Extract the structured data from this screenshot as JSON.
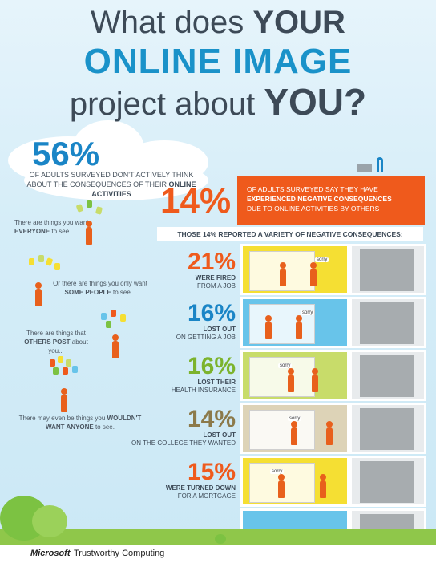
{
  "title": {
    "line1_pre": "What does",
    "line1_bold": "YOUR",
    "line2": "ONLINE IMAGE",
    "line3_pre": "project about",
    "line3_bold": "YOU?"
  },
  "intro": {
    "percent": "56%",
    "text_pre": "OF ADULTS SURVEYED DON'T ACTIVELY THINK ABOUT THE CONSEQUENCES OF THEIR",
    "text_bold": "ONLINE ACTIVITIES"
  },
  "left_items": [
    {
      "pre": "There are things you want",
      "bold": "EVERYONE",
      "post": "to see..."
    },
    {
      "pre": "Or there are things you only want",
      "bold": "SOME PEOPLE",
      "post": "to see..."
    },
    {
      "pre": "There are things that",
      "bold": "OTHERS POST",
      "post": "about you..."
    },
    {
      "pre": "There may even be things you",
      "bold": "WOULDN'T WANT ANYONE",
      "post": "to see."
    }
  ],
  "negative": {
    "percent": "14%",
    "text_pre": "OF ADULTS SURVEYED SAY THEY HAVE",
    "text_bold": "EXPERIENCED NEGATIVE CONSEQUENCES",
    "text_post": "DUE TO ONLINE ACTIVITIES BY OTHERS",
    "header": "THOSE 14% REPORTED A VARIETY OF NEGATIVE CONSEQUENCES:"
  },
  "stats": [
    {
      "percent": "21%",
      "color": "#ef5a1c",
      "bold": "WERE FIRED",
      "rest": "FROM A JOB"
    },
    {
      "percent": "16%",
      "color": "#1a85c6",
      "bold": "LOST OUT",
      "rest": "ON GETTING A JOB"
    },
    {
      "percent": "16%",
      "color": "#7cb32d",
      "bold": "LOST THEIR",
      "rest": "HEALTH INSURANCE"
    },
    {
      "percent": "14%",
      "color": "#8c7a4a",
      "bold": "LOST OUT",
      "rest": "ON THE COLLEGE THEY WANTED"
    },
    {
      "percent": "15%",
      "color": "#ef5a1c",
      "bold": "WERE TURNED DOWN",
      "rest": "FOR A MORTGAGE"
    }
  ],
  "sorry_label": "sorry",
  "footer": {
    "brand": "Microsoft",
    "tagline": "Trustworthy Computing"
  },
  "colors": {
    "floor1": "#f5df33",
    "floor2": "#68c4ea",
    "floor3": "#c8dc6a",
    "floor4": "#ddd3b7",
    "floor5": "#f5df33",
    "floor6": "#68c4ea"
  }
}
